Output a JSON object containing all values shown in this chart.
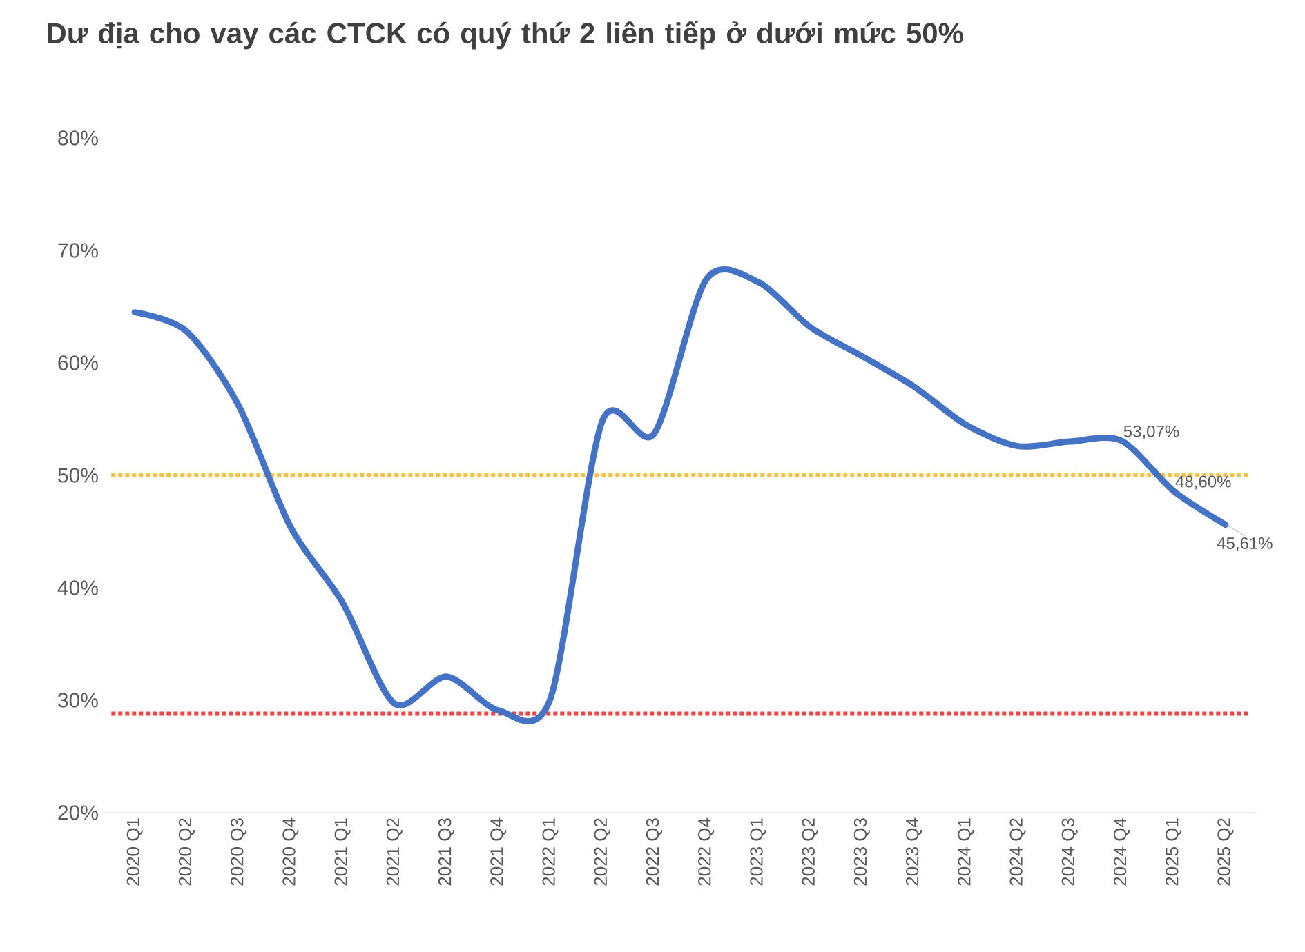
{
  "chart_data": {
    "type": "line",
    "title": "Dư địa cho vay các CTCK có quý thứ 2 liên tiếp ở dưới mức 50%",
    "categories": [
      "2020 Q1",
      "2020 Q2",
      "2020 Q3",
      "2020 Q4",
      "2021 Q1",
      "2021 Q2",
      "2021 Q3",
      "2021 Q4",
      "2022 Q1",
      "2022 Q2",
      "2022 Q3",
      "2022 Q4",
      "2023 Q1",
      "2023 Q2",
      "2023 Q3",
      "2023 Q4",
      "2024 Q1",
      "2024 Q2",
      "2024 Q3",
      "2024 Q4",
      "2025 Q1",
      "2025 Q2"
    ],
    "series": [
      {
        "color": "#4472c4",
        "values": [
          64.5,
          62.8,
          56.2,
          45.4,
          38.7,
          29.7,
          32.1,
          29.1,
          30.1,
          54.8,
          53.7,
          67.4,
          67.2,
          63.2,
          60.6,
          57.9,
          54.5,
          52.6,
          53.0,
          53.07,
          48.6,
          45.61
        ],
        "value_labels": [
          null,
          null,
          null,
          null,
          null,
          null,
          null,
          null,
          null,
          null,
          null,
          null,
          null,
          null,
          null,
          null,
          null,
          null,
          null,
          "53,07%",
          "48,60%",
          "45,61%"
        ]
      }
    ],
    "ylim": [
      20,
      80
    ],
    "yticks": [
      {
        "value": 20,
        "label": "20%"
      },
      {
        "value": 30,
        "label": "30%"
      },
      {
        "value": 40,
        "label": "40%"
      },
      {
        "value": 50,
        "label": "50%"
      },
      {
        "value": 60,
        "label": "60%"
      },
      {
        "value": 70,
        "label": "70%"
      },
      {
        "value": 80,
        "label": "80%"
      }
    ],
    "ref_lines": [
      {
        "axis": "y",
        "value": 50,
        "color": "#f5c242",
        "line_style": "dotted"
      },
      {
        "axis": "y",
        "value": 28.8,
        "color": "#ee4444",
        "line_style": "dotted"
      }
    ],
    "grid": false,
    "marker": "none",
    "line_style": "solid"
  }
}
